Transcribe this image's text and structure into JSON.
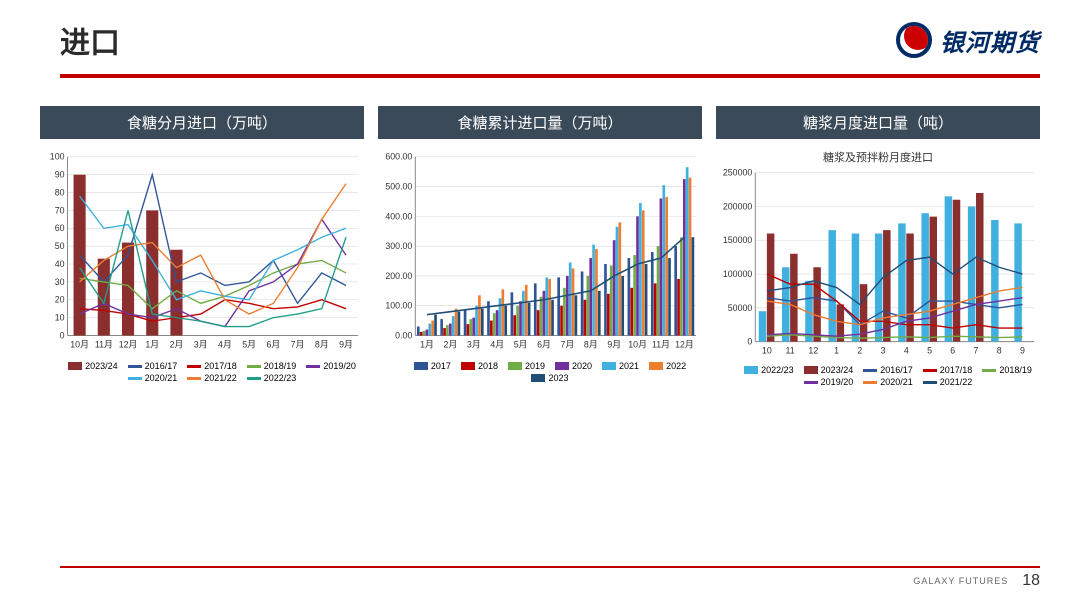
{
  "header": {
    "title": "进口",
    "brand": "银河期货"
  },
  "footer": {
    "brand_en": "GALAXY FUTURES",
    "page": "18"
  },
  "colors": {
    "panel_title_bg": "#3b4a59",
    "rule": "#c00000",
    "grid": "#d9d9d9",
    "axis": "#666666",
    "text": "#333333"
  },
  "chart1": {
    "title": "食糖分月进口（万吨）",
    "type": "bar+line",
    "months": [
      "10月",
      "11月",
      "12月",
      "1月",
      "2月",
      "3月",
      "4月",
      "5月",
      "6月",
      "7月",
      "8月",
      "9月"
    ],
    "ylim": [
      0,
      100
    ],
    "ytick_step": 10,
    "bar": {
      "name": "2023/24",
      "color": "#8b2e2e",
      "values": [
        90,
        43,
        52,
        70,
        48,
        null,
        null,
        null,
        null,
        null,
        null,
        null
      ]
    },
    "lines": [
      {
        "name": "2016/17",
        "color": "#2f5597",
        "values": [
          45,
          30,
          45,
          90,
          30,
          35,
          28,
          30,
          42,
          18,
          35,
          28
        ]
      },
      {
        "name": "2017/18",
        "color": "#c00000",
        "values": [
          15,
          14,
          12,
          8,
          10,
          12,
          20,
          18,
          15,
          16,
          20,
          15
        ]
      },
      {
        "name": "2018/19",
        "color": "#70ad47",
        "values": [
          32,
          30,
          28,
          15,
          25,
          18,
          22,
          28,
          35,
          40,
          42,
          35
        ]
      },
      {
        "name": "2019/20",
        "color": "#7030a0",
        "values": [
          12,
          18,
          12,
          10,
          15,
          8,
          5,
          25,
          30,
          40,
          65,
          45
        ]
      },
      {
        "name": "2020/21",
        "color": "#3fb0e0",
        "values": [
          78,
          60,
          62,
          42,
          20,
          25,
          22,
          20,
          42,
          48,
          55,
          60
        ]
      },
      {
        "name": "2021/22",
        "color": "#ed7d31",
        "values": [
          30,
          42,
          50,
          52,
          38,
          45,
          20,
          12,
          18,
          38,
          65,
          85
        ]
      },
      {
        "name": "2022/23",
        "color": "#1f9e89",
        "values": [
          38,
          18,
          70,
          12,
          10,
          8,
          5,
          5,
          10,
          12,
          15,
          55
        ]
      }
    ],
    "legend_order": [
      "2023/24",
      "2016/17",
      "2017/18",
      "2018/19",
      "2019/20",
      "2020/21",
      "2021/22",
      "2022/23"
    ]
  },
  "chart2": {
    "title": "食糖累计进口量（万吨）",
    "type": "bar+line",
    "months": [
      "1月",
      "2月",
      "3月",
      "4月",
      "5月",
      "6月",
      "7月",
      "8月",
      "9月",
      "10月",
      "11月",
      "12月"
    ],
    "ylim": [
      0,
      600
    ],
    "ytick_step": 100,
    "y_decimals": 2,
    "bars": [
      {
        "name": "2017",
        "color": "#2f5597",
        "values": [
          30,
          55,
          85,
          115,
          145,
          175,
          195,
          215,
          240,
          260,
          280,
          300
        ]
      },
      {
        "name": "2018",
        "color": "#c00000",
        "values": [
          12,
          25,
          38,
          50,
          68,
          85,
          100,
          120,
          140,
          160,
          175,
          190
        ]
      },
      {
        "name": "2019",
        "color": "#70ad47",
        "values": [
          15,
          35,
          55,
          75,
          100,
          130,
          160,
          200,
          235,
          270,
          300,
          330
        ]
      },
      {
        "name": "2020",
        "color": "#7030a0",
        "values": [
          20,
          40,
          60,
          85,
          115,
          150,
          200,
          260,
          320,
          400,
          460,
          525
        ]
      },
      {
        "name": "2021",
        "color": "#3fb0e0",
        "values": [
          40,
          65,
          100,
          125,
          150,
          195,
          245,
          305,
          365,
          445,
          505,
          565
        ]
      },
      {
        "name": "2022",
        "color": "#ed7d31",
        "values": [
          50,
          90,
          135,
          155,
          170,
          190,
          225,
          290,
          380,
          420,
          465,
          530
        ]
      },
      {
        "name": "2023",
        "color": "#1f4e79",
        "values": [
          70,
          80,
          90,
          100,
          110,
          120,
          135,
          150,
          200,
          240,
          260,
          330
        ]
      }
    ],
    "line": {
      "name": "2023",
      "color": "#1f4e79",
      "values": [
        70,
        80,
        90,
        100,
        110,
        120,
        135,
        150,
        200,
        240,
        260,
        330
      ]
    },
    "legend_order": [
      "2017",
      "2018",
      "2019",
      "2020",
      "2021",
      "2022",
      "2023"
    ]
  },
  "chart3": {
    "title": "糖浆月度进口量（吨）",
    "subtitle": "糖浆及预拌粉月度进口",
    "type": "bar+line",
    "months": [
      "10",
      "11",
      "12",
      "1",
      "2",
      "3",
      "4",
      "5",
      "6",
      "7",
      "8",
      "9"
    ],
    "ylim": [
      0,
      250000
    ],
    "ytick_step": 50000,
    "bars": [
      {
        "name": "2022/23",
        "color": "#3fb0e0",
        "values": [
          45000,
          110000,
          90000,
          165000,
          160000,
          160000,
          175000,
          190000,
          215000,
          200000,
          180000,
          175000
        ]
      },
      {
        "name": "2023/24",
        "color": "#8b2e2e",
        "values": [
          160000,
          130000,
          110000,
          55000,
          85000,
          165000,
          160000,
          185000,
          210000,
          220000,
          null,
          null
        ]
      }
    ],
    "lines": [
      {
        "name": "2016/17",
        "color": "#2f5597",
        "values": [
          65000,
          60000,
          65000,
          60000,
          25000,
          45000,
          35000,
          60000,
          60000,
          55000,
          50000,
          55000
        ]
      },
      {
        "name": "2017/18",
        "color": "#c00000",
        "values": [
          100000,
          85000,
          85000,
          60000,
          30000,
          30000,
          25000,
          25000,
          20000,
          25000,
          20000,
          20000
        ]
      },
      {
        "name": "2018/19",
        "color": "#70ad47",
        "values": [
          8000,
          10000,
          8000,
          6000,
          5000,
          6000,
          7000,
          6000,
          8000,
          7000,
          6000,
          7000
        ]
      },
      {
        "name": "2019/20",
        "color": "#7030a0",
        "values": [
          10000,
          12000,
          10000,
          8000,
          11000,
          18000,
          30000,
          35000,
          45000,
          55000,
          60000,
          65000
        ]
      },
      {
        "name": "2020/21",
        "color": "#ed7d31",
        "values": [
          60000,
          55000,
          40000,
          30000,
          25000,
          35000,
          40000,
          45000,
          55000,
          65000,
          75000,
          80000
        ]
      },
      {
        "name": "2021/22",
        "color": "#1f4e79",
        "values": [
          75000,
          80000,
          90000,
          80000,
          55000,
          95000,
          120000,
          125000,
          100000,
          125000,
          110000,
          100000
        ]
      }
    ],
    "legend_order": [
      "2022/23",
      "2023/24",
      "2016/17",
      "2017/18",
      "2018/19",
      "2019/20",
      "2020/21",
      "2021/22"
    ]
  }
}
